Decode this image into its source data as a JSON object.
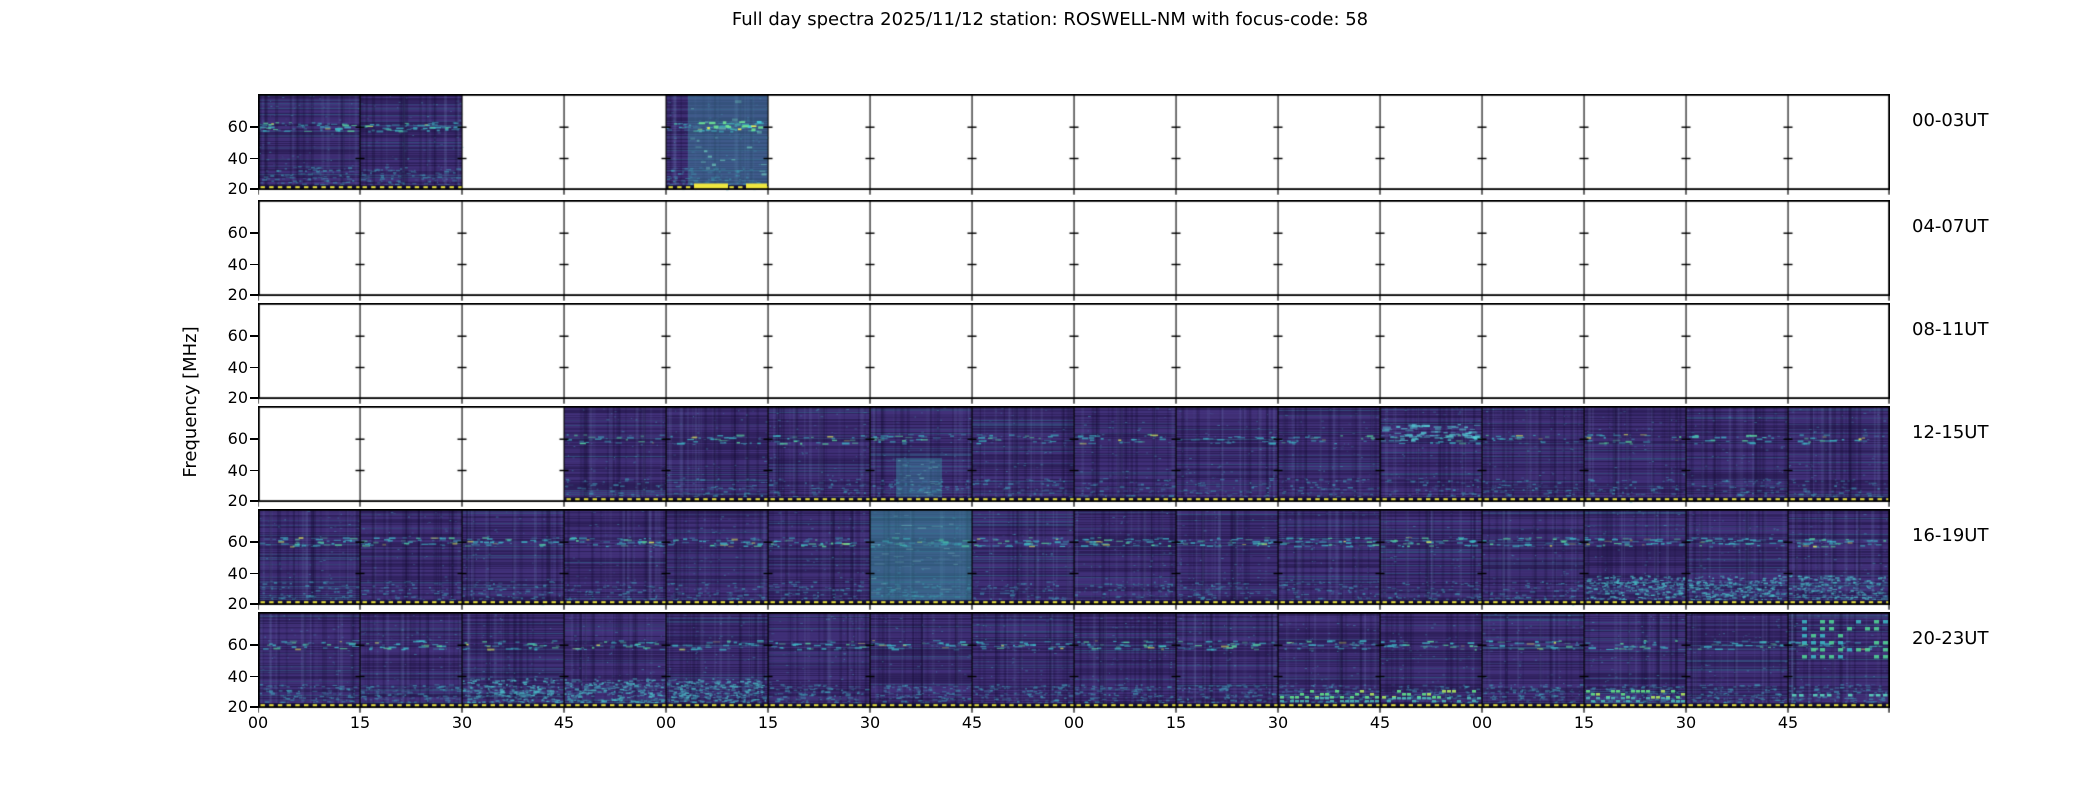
{
  "title": "Full day spectra 2025/11/12 station: ROSWELL-NM with focus-code: 58",
  "chart_data": {
    "type": "heatmap",
    "title": "Full day spectra 2025/11/12 station: ROSWELL-NM with focus-code: 58",
    "date": "2025/11/12",
    "station": "ROSWELL-NM",
    "focus_code": "58",
    "ylabel": "Frequency [MHz]",
    "freq_tick_labels": [
      "60",
      "40",
      "20"
    ],
    "freq_axis_range_mhz": [
      20,
      80
    ],
    "x_tick_labels": [
      "00",
      "15",
      "30",
      "45",
      "00",
      "15",
      "30",
      "45",
      "00",
      "15",
      "30",
      "45",
      "00",
      "15",
      "30",
      "45"
    ],
    "panel_duration_minutes": 15,
    "panels_per_row": 16,
    "colormap": "viridis",
    "colors": {
      "background": "#ffffff",
      "frame": "#000000",
      "spectrogram_base": "#39296c",
      "teal": "#3a9bb0",
      "cyan": "#3ebac8",
      "green": "#5fdc87",
      "marker_yellow": "#e9e23e"
    },
    "rows": [
      {
        "label": "00-03UT",
        "band60": 1.0,
        "bottom": 0.8,
        "panels": [
          "data",
          "data",
          "empty",
          "empty",
          "burst",
          "empty",
          "empty",
          "empty",
          "empty",
          "empty",
          "empty",
          "empty",
          "empty",
          "empty",
          "empty",
          "empty"
        ]
      },
      {
        "label": "04-07UT",
        "band60": 0,
        "bottom": 0,
        "panels": [
          "empty",
          "empty",
          "empty",
          "empty",
          "empty",
          "empty",
          "empty",
          "empty",
          "empty",
          "empty",
          "empty",
          "empty",
          "empty",
          "empty",
          "empty",
          "empty"
        ]
      },
      {
        "label": "08-11UT",
        "band60": 0,
        "bottom": 0,
        "panels": [
          "empty",
          "empty",
          "empty",
          "empty",
          "empty",
          "empty",
          "empty",
          "empty",
          "empty",
          "empty",
          "empty",
          "empty",
          "empty",
          "empty",
          "empty",
          "empty"
        ]
      },
      {
        "label": "12-15UT",
        "band60": 0.45,
        "bottom": 0.45,
        "panels": [
          "empty",
          "empty",
          "empty",
          "data",
          "data",
          "data",
          "tealbottom",
          "data",
          "data",
          "data",
          "data",
          "cyanband",
          "data",
          "data",
          "data",
          "data"
        ]
      },
      {
        "label": "16-19UT",
        "band60": 0.7,
        "bottom": 0.55,
        "panels": [
          "data",
          "data",
          "data",
          "data",
          "data",
          "data",
          "tealblock",
          "data",
          "data",
          "data",
          "data",
          "data",
          "data",
          "speckle",
          "speckle",
          "speckle"
        ]
      },
      {
        "label": "20-23UT",
        "band60": 0.55,
        "bottom": 0.95,
        "panels": [
          "data",
          "data",
          "speckle",
          "speckle",
          "speckle",
          "data",
          "data",
          "data",
          "data",
          "data",
          "greenbottom",
          "greenbottom",
          "data",
          "greenbottom",
          "data",
          "greengrid"
        ]
      }
    ]
  }
}
